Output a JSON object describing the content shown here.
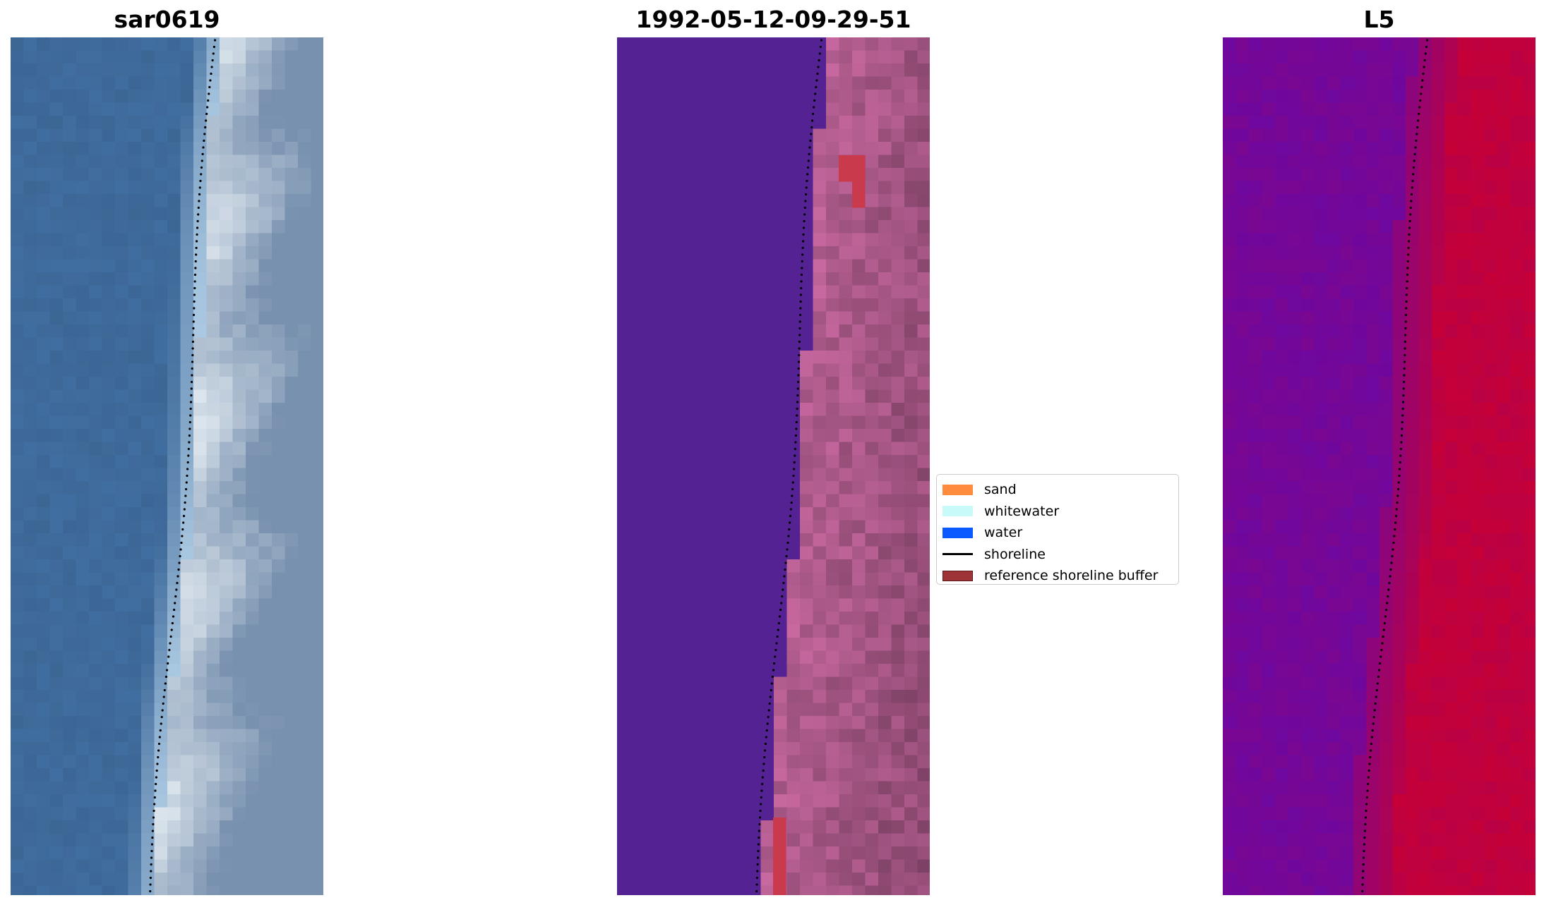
{
  "panels": [
    {
      "title": "sar0619",
      "style": "rgb"
    },
    {
      "title": "1992-05-12-09-29-51",
      "style": "classified"
    },
    {
      "title": "L5",
      "style": "index"
    }
  ],
  "legend": {
    "items": [
      {
        "label": "sand",
        "color": "#ff8c3c",
        "kind": "patch"
      },
      {
        "label": "whitewater",
        "color": "#c8fafa",
        "kind": "patch"
      },
      {
        "label": "water",
        "color": "#0a5aff",
        "kind": "patch"
      },
      {
        "label": "shoreline",
        "color": "#000000",
        "kind": "line"
      },
      {
        "label": "reference shoreline buffer",
        "color": "#9e3438",
        "kind": "patch"
      }
    ]
  },
  "colors": {
    "rgb_water": "#3f6b9c",
    "rgb_foam": "#eef4f8",
    "class_water": "#552294",
    "class_land": "#c0649a",
    "class_buffer": "#c83a4c",
    "index_low": "#6a08a4",
    "index_high": "#c80034"
  }
}
